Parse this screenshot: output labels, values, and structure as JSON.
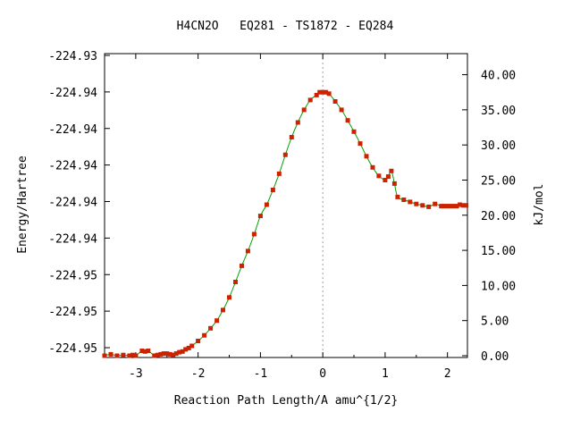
{
  "chart_data": {
    "type": "line",
    "title": "H4CN2O   EQ281 - TS1872 - EQ284",
    "xlabel": "Reaction Path Length/A amu^{1/2}",
    "ylabel": "Energy/Hartree",
    "y2label": "kJ/mol",
    "xlim": [
      -3.5,
      2.32
    ],
    "ylim_right": [
      0,
      43
    ],
    "x_ticks": [
      -3,
      -2,
      -1,
      0,
      1,
      2
    ],
    "x_tick_labels": [
      "-3",
      "-2",
      "-1",
      "0",
      "1",
      "2"
    ],
    "y_left_tick_labels": [
      "-224.93",
      "-224.94",
      "-224.94",
      "-224.94",
      "-224.94",
      "-224.94",
      "-224.95",
      "-224.95",
      "-224.95"
    ],
    "y_right_ticks": [
      0,
      5,
      10,
      15,
      20,
      25,
      30,
      35,
      40
    ],
    "y_right_tick_labels": [
      "0.00",
      "5.00",
      "10.00",
      "15.00",
      "20.00",
      "25.00",
      "30.00",
      "35.00",
      "40.00"
    ],
    "ts_x": 0,
    "line_color": "#00a000",
    "marker_color": "#cc2200",
    "series": [
      {
        "x": [
          -3.5,
          -3.4,
          -3.3,
          -3.2,
          -3.1,
          -3.05,
          -3.0,
          -2.9,
          -2.85,
          -2.8,
          -2.7,
          -2.65,
          -2.6,
          -2.55,
          -2.5,
          -2.45,
          -2.4,
          -2.35,
          -2.3,
          -2.25,
          -2.2,
          -2.15,
          -2.1,
          -2.0,
          -1.9,
          -1.8,
          -1.7,
          -1.6,
          -1.5,
          -1.4,
          -1.3,
          -1.2,
          -1.1,
          -1.0,
          -0.9,
          -0.8,
          -0.7,
          -0.6,
          -0.5,
          -0.4,
          -0.3,
          -0.2,
          -0.1,
          -0.05,
          0.0,
          0.05,
          0.1,
          0.2,
          0.3,
          0.4,
          0.5,
          0.6,
          0.7,
          0.8,
          0.9,
          1.0,
          1.05,
          1.1,
          1.15,
          1.2,
          1.3,
          1.4,
          1.5,
          1.6,
          1.7,
          1.8,
          1.9,
          1.95,
          2.0,
          2.05,
          2.1,
          2.15,
          2.2,
          2.25,
          2.3
        ],
        "y": [
          0.0,
          0.2,
          0.0,
          0.1,
          0.0,
          0.1,
          0.0,
          0.7,
          0.6,
          0.7,
          0.0,
          0.1,
          0.2,
          0.3,
          0.3,
          0.2,
          0.1,
          0.3,
          0.5,
          0.6,
          0.9,
          1.1,
          1.4,
          2.1,
          2.9,
          3.9,
          5.0,
          6.5,
          8.3,
          10.5,
          12.8,
          14.9,
          17.3,
          19.9,
          21.5,
          23.6,
          25.9,
          28.6,
          31.1,
          33.2,
          35.0,
          36.4,
          37.1,
          37.5,
          37.5,
          37.5,
          37.3,
          36.2,
          35.0,
          33.5,
          31.9,
          30.2,
          28.4,
          26.8,
          25.6,
          25.0,
          25.5,
          26.3,
          24.5,
          22.6,
          22.2,
          21.9,
          21.6,
          21.4,
          21.2,
          21.6,
          21.3,
          21.3,
          21.3,
          21.3,
          21.3,
          21.3,
          21.5,
          21.4,
          21.4
        ]
      }
    ]
  }
}
